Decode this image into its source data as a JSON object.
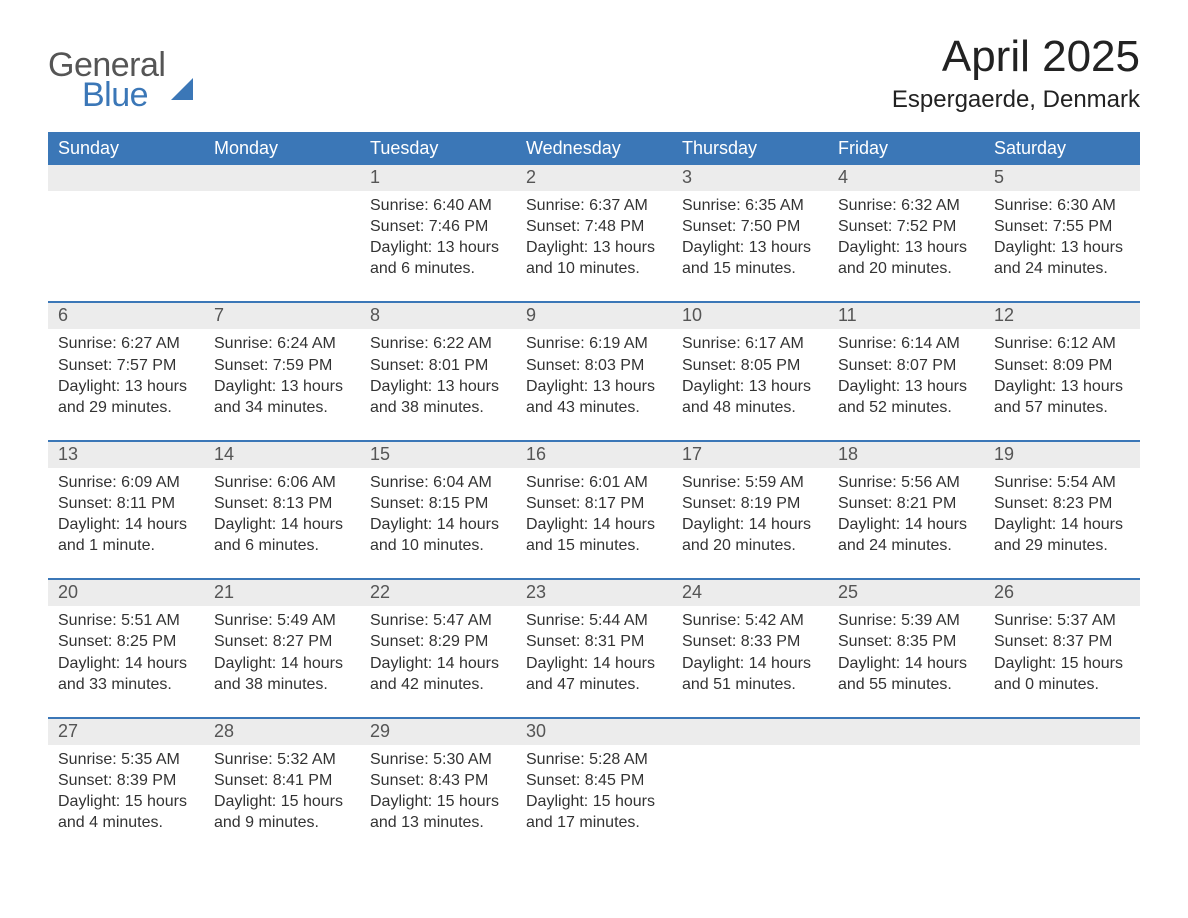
{
  "colors": {
    "blue": "#3b77b7",
    "blue_dark": "#2a5d94",
    "row_grey": "#ececec",
    "text": "#333333",
    "page_bg": "#ffffff"
  },
  "logo": {
    "word1": "General",
    "word2": "Blue"
  },
  "title": "April 2025",
  "location": "Espergaerde, Denmark",
  "weekdays": [
    "Sunday",
    "Monday",
    "Tuesday",
    "Wednesday",
    "Thursday",
    "Friday",
    "Saturday"
  ],
  "calendar": {
    "type": "calendar-grid",
    "month": "April",
    "year": 2025,
    "start_day_index": 2,
    "num_days": 30,
    "fields_per_day": [
      "sunrise",
      "sunset",
      "daylight"
    ],
    "days": {
      "1": {
        "sunrise": "6:40 AM",
        "sunset": "7:46 PM",
        "daylight": "13 hours and 6 minutes."
      },
      "2": {
        "sunrise": "6:37 AM",
        "sunset": "7:48 PM",
        "daylight": "13 hours and 10 minutes."
      },
      "3": {
        "sunrise": "6:35 AM",
        "sunset": "7:50 PM",
        "daylight": "13 hours and 15 minutes."
      },
      "4": {
        "sunrise": "6:32 AM",
        "sunset": "7:52 PM",
        "daylight": "13 hours and 20 minutes."
      },
      "5": {
        "sunrise": "6:30 AM",
        "sunset": "7:55 PM",
        "daylight": "13 hours and 24 minutes."
      },
      "6": {
        "sunrise": "6:27 AM",
        "sunset": "7:57 PM",
        "daylight": "13 hours and 29 minutes."
      },
      "7": {
        "sunrise": "6:24 AM",
        "sunset": "7:59 PM",
        "daylight": "13 hours and 34 minutes."
      },
      "8": {
        "sunrise": "6:22 AM",
        "sunset": "8:01 PM",
        "daylight": "13 hours and 38 minutes."
      },
      "9": {
        "sunrise": "6:19 AM",
        "sunset": "8:03 PM",
        "daylight": "13 hours and 43 minutes."
      },
      "10": {
        "sunrise": "6:17 AM",
        "sunset": "8:05 PM",
        "daylight": "13 hours and 48 minutes."
      },
      "11": {
        "sunrise": "6:14 AM",
        "sunset": "8:07 PM",
        "daylight": "13 hours and 52 minutes."
      },
      "12": {
        "sunrise": "6:12 AM",
        "sunset": "8:09 PM",
        "daylight": "13 hours and 57 minutes."
      },
      "13": {
        "sunrise": "6:09 AM",
        "sunset": "8:11 PM",
        "daylight": "14 hours and 1 minute."
      },
      "14": {
        "sunrise": "6:06 AM",
        "sunset": "8:13 PM",
        "daylight": "14 hours and 6 minutes."
      },
      "15": {
        "sunrise": "6:04 AM",
        "sunset": "8:15 PM",
        "daylight": "14 hours and 10 minutes."
      },
      "16": {
        "sunrise": "6:01 AM",
        "sunset": "8:17 PM",
        "daylight": "14 hours and 15 minutes."
      },
      "17": {
        "sunrise": "5:59 AM",
        "sunset": "8:19 PM",
        "daylight": "14 hours and 20 minutes."
      },
      "18": {
        "sunrise": "5:56 AM",
        "sunset": "8:21 PM",
        "daylight": "14 hours and 24 minutes."
      },
      "19": {
        "sunrise": "5:54 AM",
        "sunset": "8:23 PM",
        "daylight": "14 hours and 29 minutes."
      },
      "20": {
        "sunrise": "5:51 AM",
        "sunset": "8:25 PM",
        "daylight": "14 hours and 33 minutes."
      },
      "21": {
        "sunrise": "5:49 AM",
        "sunset": "8:27 PM",
        "daylight": "14 hours and 38 minutes."
      },
      "22": {
        "sunrise": "5:47 AM",
        "sunset": "8:29 PM",
        "daylight": "14 hours and 42 minutes."
      },
      "23": {
        "sunrise": "5:44 AM",
        "sunset": "8:31 PM",
        "daylight": "14 hours and 47 minutes."
      },
      "24": {
        "sunrise": "5:42 AM",
        "sunset": "8:33 PM",
        "daylight": "14 hours and 51 minutes."
      },
      "25": {
        "sunrise": "5:39 AM",
        "sunset": "8:35 PM",
        "daylight": "14 hours and 55 minutes."
      },
      "26": {
        "sunrise": "5:37 AM",
        "sunset": "8:37 PM",
        "daylight": "15 hours and 0 minutes."
      },
      "27": {
        "sunrise": "5:35 AM",
        "sunset": "8:39 PM",
        "daylight": "15 hours and 4 minutes."
      },
      "28": {
        "sunrise": "5:32 AM",
        "sunset": "8:41 PM",
        "daylight": "15 hours and 9 minutes."
      },
      "29": {
        "sunrise": "5:30 AM",
        "sunset": "8:43 PM",
        "daylight": "15 hours and 13 minutes."
      },
      "30": {
        "sunrise": "5:28 AM",
        "sunset": "8:45 PM",
        "daylight": "15 hours and 17 minutes."
      }
    }
  },
  "labels": {
    "sunrise_prefix": "Sunrise: ",
    "sunset_prefix": "Sunset: ",
    "daylight_prefix": "Daylight: "
  },
  "typography": {
    "title_fontsize": 44,
    "location_fontsize": 24,
    "weekday_fontsize": 18,
    "daynum_fontsize": 18,
    "body_fontsize": 16,
    "font_family": "Segoe UI / Helvetica Neue / Arial"
  },
  "layout": {
    "columns": 7,
    "rows": 5,
    "week_border_top_color": "#3b77b7",
    "week_border_top_width": 2
  }
}
